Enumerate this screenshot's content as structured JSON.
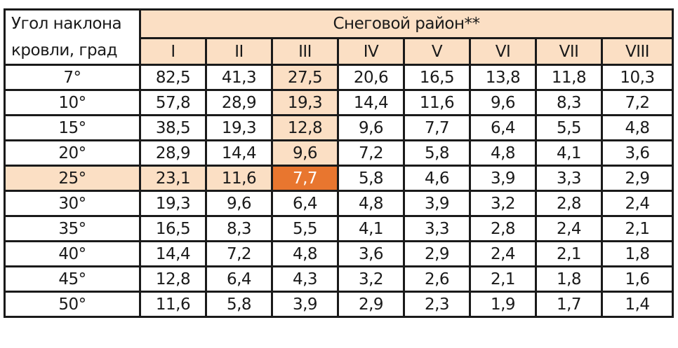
{
  "header": {
    "corner": [
      "Угол наклона",
      "кровли, град"
    ],
    "title": "Снеговой район**",
    "columns": [
      "I",
      "II",
      "III",
      "IV",
      "V",
      "VI",
      "VII",
      "VIII"
    ]
  },
  "table": {
    "rows": [
      [
        "7°",
        "82,5",
        "41,3",
        "27,5",
        "20,6",
        "16,5",
        "13,8",
        "11,8",
        "10,3"
      ],
      [
        "10°",
        "57,8",
        "28,9",
        "19,3",
        "14,4",
        "11,6",
        "9,6",
        "8,3",
        "7,2"
      ],
      [
        "15°",
        "38,5",
        "19,3",
        "12,8",
        "9,6",
        "7,7",
        "6,4",
        "5,5",
        "4,8"
      ],
      [
        "20°",
        "28,9",
        "14,4",
        "9,6",
        "7,2",
        "5,8",
        "4,8",
        "4,1",
        "3,6"
      ],
      [
        "25°",
        "23,1",
        "11,6",
        "7,7",
        "5,8",
        "4,6",
        "3,9",
        "3,3",
        "2,9"
      ],
      [
        "30°",
        "19,3",
        "9,6",
        "6,4",
        "4,8",
        "3,9",
        "3,2",
        "2,8",
        "2,4"
      ],
      [
        "35°",
        "16,5",
        "8,3",
        "5,5",
        "4,1",
        "3,3",
        "2,8",
        "2,4",
        "2,1"
      ],
      [
        "40°",
        "14,4",
        "7,2",
        "4,8",
        "3,6",
        "2,9",
        "2,4",
        "2,1",
        "1,8"
      ],
      [
        "45°",
        "12,8",
        "6,4",
        "4,3",
        "3,2",
        "2,6",
        "2,1",
        "1,8",
        "1,6"
      ],
      [
        "50°",
        "11,6",
        "5,8",
        "3,9",
        "2,9",
        "2,3",
        "1,9",
        "1,7",
        "1,4"
      ]
    ]
  }
}
